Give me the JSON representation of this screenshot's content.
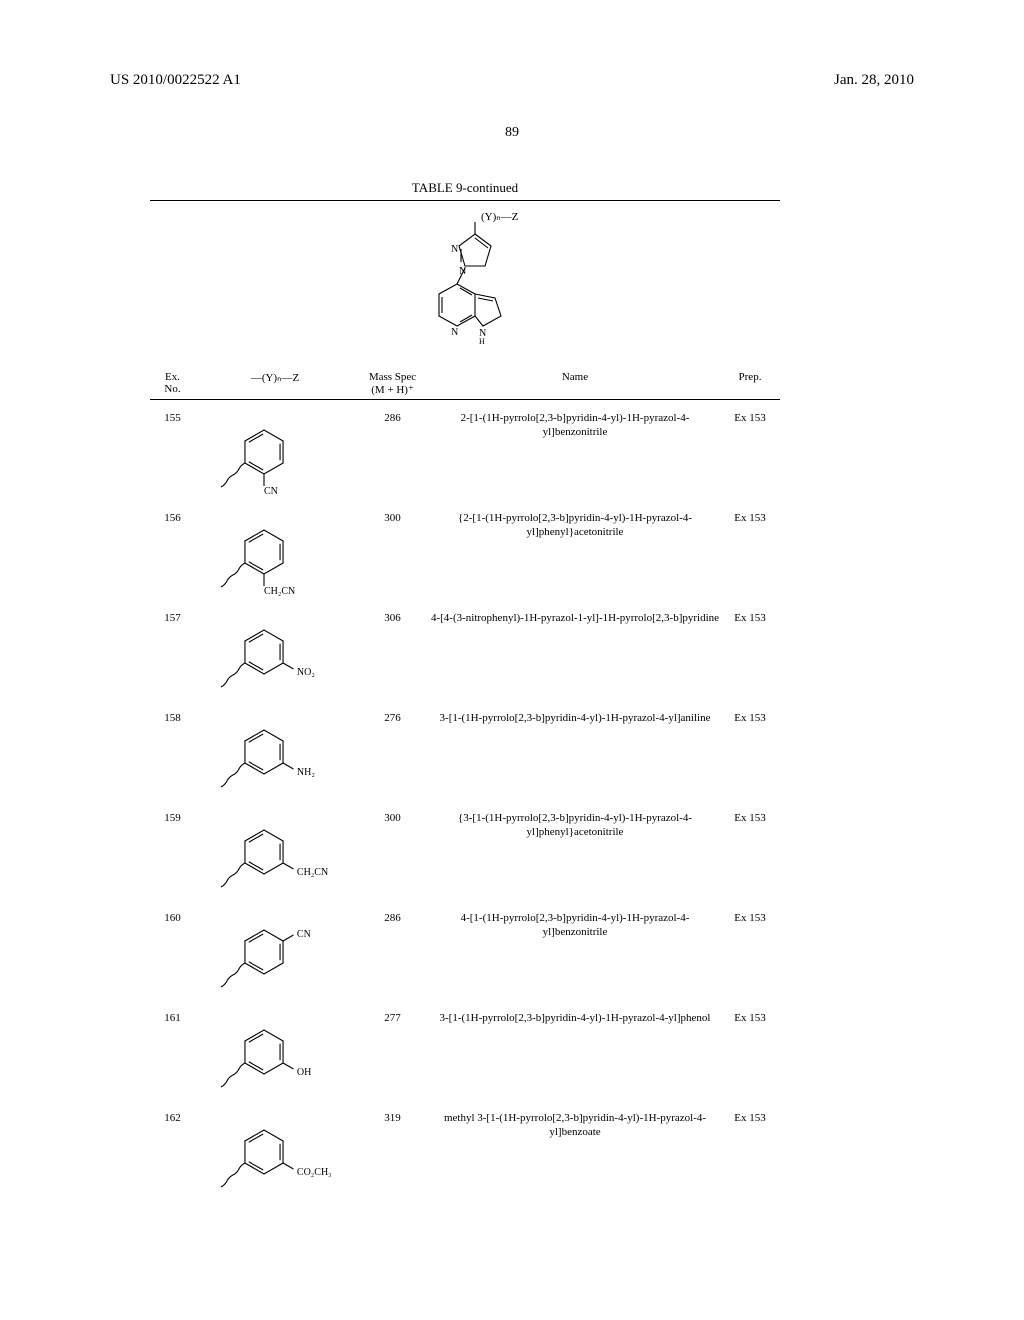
{
  "header": {
    "pub_number": "US 2010/0022522 A1",
    "pub_date": "Jan. 28, 2010",
    "page": "89"
  },
  "table": {
    "title": "TABLE 9-continued",
    "scaffold_label_top": "(Y)ₙ—Z",
    "headers": {
      "ex": "Ex.\nNo.",
      "yz": "—(Y)ₙ—Z",
      "ms": "Mass Spec\n(M + H)⁺",
      "name": "Name",
      "prep": "Prep."
    },
    "rows": [
      {
        "ex": "155",
        "ms": "286",
        "name": "2-[1-(1H-pyrrolo[2,3-b]pyridin-4-yl)-1H-pyrazol-4-yl]benzonitrile",
        "prep": "Ex 153",
        "subst": {
          "pattern": "ortho",
          "label": "CN"
        }
      },
      {
        "ex": "156",
        "ms": "300",
        "name": "{2-[1-(1H-pyrrolo[2,3-b]pyridin-4-yl)-1H-pyrazol-4-yl]phenyl}acetonitrile",
        "prep": "Ex 153",
        "subst": {
          "pattern": "ortho",
          "label": "CH₂CN"
        }
      },
      {
        "ex": "157",
        "ms": "306",
        "name": "4-[4-(3-nitrophenyl)-1H-pyrazol-1-yl]-1H-pyrrolo[2,3-b]pyridine",
        "prep": "Ex 153",
        "subst": {
          "pattern": "meta",
          "label": "NO₂"
        }
      },
      {
        "ex": "158",
        "ms": "276",
        "name": "3-[1-(1H-pyrrolo[2,3-b]pyridin-4-yl)-1H-pyrazol-4-yl]aniline",
        "prep": "Ex 153",
        "subst": {
          "pattern": "meta",
          "label": "NH₂"
        }
      },
      {
        "ex": "159",
        "ms": "300",
        "name": "{3-[1-(1H-pyrrolo[2,3-b]pyridin-4-yl)-1H-pyrazol-4-yl]phenyl}acetonitrile",
        "prep": "Ex 153",
        "subst": {
          "pattern": "meta",
          "label": "CH₂CN"
        }
      },
      {
        "ex": "160",
        "ms": "286",
        "name": "4-[1-(1H-pyrrolo[2,3-b]pyridin-4-yl)-1H-pyrazol-4-yl]benzonitrile",
        "prep": "Ex 153",
        "subst": {
          "pattern": "para",
          "label": "CN"
        }
      },
      {
        "ex": "161",
        "ms": "277",
        "name": "3-[1-(1H-pyrrolo[2,3-b]pyridin-4-yl)-1H-pyrazol-4-yl]phenol",
        "prep": "Ex 153",
        "subst": {
          "pattern": "meta",
          "label": "OH"
        }
      },
      {
        "ex": "162",
        "ms": "319",
        "name": "methyl 3-[1-(1H-pyrrolo[2,3-b]pyridin-4-yl)-1H-pyrazol-4-yl]benzoate",
        "prep": "Ex 153",
        "subst": {
          "pattern": "meta",
          "label": "CO₂CH₃"
        }
      }
    ]
  }
}
